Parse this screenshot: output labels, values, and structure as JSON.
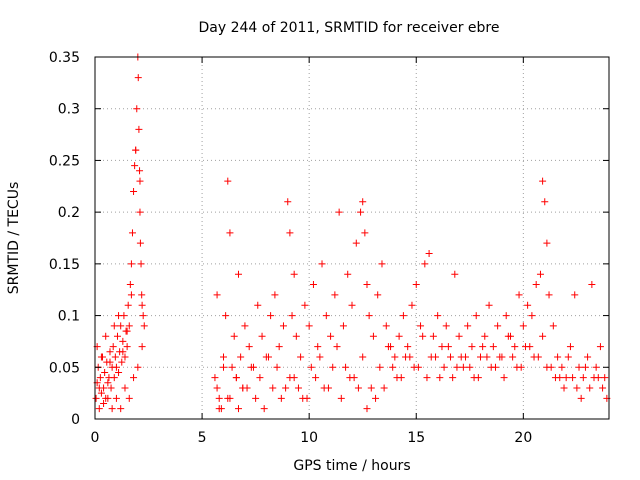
{
  "chart_data": {
    "type": "scatter",
    "title": "Day 244 of 2011, SRMTID for receiver ebre",
    "xlabel": "GPS time / hours",
    "ylabel": "SRMTID / TECUs",
    "xlim": [
      0,
      24
    ],
    "ylim": [
      0,
      0.35
    ],
    "xticks": [
      0,
      5,
      10,
      15,
      20
    ],
    "xtick_labels": [
      "0",
      "5",
      "10",
      "15",
      "20"
    ],
    "yticks": [
      0,
      0.05,
      0.1,
      0.15,
      0.2,
      0.25,
      0.3,
      0.35
    ],
    "ytick_labels": [
      "0",
      "0.05",
      "0.1",
      "0.15",
      "0.2",
      "0.25",
      "0.3",
      "0.35"
    ],
    "grid": true,
    "marker": "+",
    "marker_color": "#ff0000",
    "series": [
      {
        "name": "SRMTID",
        "x": [
          0.05,
          0.1,
          0.15,
          0.2,
          0.25,
          0.3,
          0.35,
          0.4,
          0.45,
          0.5,
          0.55,
          0.6,
          0.65,
          0.7,
          0.75,
          0.8,
          0.85,
          0.9,
          0.95,
          1.0,
          1.05,
          1.1,
          1.15,
          1.2,
          1.25,
          1.3,
          1.35,
          1.4,
          1.45,
          1.5,
          1.55,
          1.6,
          1.65,
          1.7,
          1.75,
          1.8,
          1.85,
          1.9,
          1.95,
          2.0,
          2.02,
          2.05,
          2.08,
          2.1,
          2.12,
          2.15,
          2.18,
          2.2,
          2.25,
          2.3,
          0.2,
          0.4,
          0.6,
          0.8,
          1.0,
          1.2,
          1.4,
          1.6,
          1.8,
          2.0,
          0.1,
          0.3,
          0.5,
          0.7,
          0.9,
          1.1,
          1.3,
          1.5,
          1.7,
          1.9,
          2.1,
          2.2,
          5.6,
          5.7,
          5.8,
          5.9,
          6.0,
          6.1,
          6.2,
          6.3,
          6.4,
          6.5,
          6.6,
          6.7,
          6.8,
          6.9,
          7.0,
          7.2,
          7.4,
          7.6,
          7.8,
          8.0,
          8.2,
          8.4,
          8.6,
          8.8,
          9.0,
          9.1,
          9.2,
          9.3,
          9.4,
          9.6,
          9.8,
          10.0,
          10.2,
          10.4,
          10.6,
          10.8,
          11.0,
          11.2,
          11.4,
          11.6,
          11.8,
          12.0,
          12.2,
          12.4,
          12.5,
          12.6,
          12.7,
          12.8,
          13.0,
          13.2,
          13.4,
          13.6,
          13.8,
          14.0,
          14.2,
          14.4,
          14.6,
          14.8,
          15.0,
          15.2,
          15.4,
          15.6,
          15.8,
          16.0,
          16.2,
          16.4,
          16.6,
          16.8,
          17.0,
          17.2,
          17.4,
          17.6,
          17.8,
          18.0,
          18.2,
          18.4,
          18.6,
          18.8,
          19.0,
          19.2,
          19.4,
          19.6,
          19.8,
          20.0,
          20.2,
          20.4,
          20.6,
          20.8,
          20.9,
          21.0,
          21.1,
          21.2,
          21.4,
          21.6,
          21.8,
          22.0,
          22.2,
          22.4,
          22.6,
          22.8,
          23.0,
          23.2,
          23.4,
          23.6,
          23.8,
          5.7,
          6.0,
          6.3,
          6.6,
          6.9,
          7.3,
          7.7,
          8.1,
          8.5,
          8.9,
          9.3,
          9.7,
          10.1,
          10.5,
          10.9,
          11.3,
          11.7,
          12.1,
          12.5,
          12.9,
          13.3,
          13.7,
          14.1,
          14.5,
          14.9,
          15.3,
          15.7,
          16.1,
          16.5,
          16.9,
          17.3,
          17.7,
          18.1,
          18.5,
          18.9,
          19.3,
          19.7,
          20.1,
          20.5,
          20.9,
          21.3,
          21.7,
          22.1,
          22.5,
          22.9,
          23.3,
          23.7,
          5.8,
          6.2,
          6.7,
          7.1,
          7.5,
          7.9,
          8.3,
          8.7,
          9.1,
          9.5,
          9.9,
          10.3,
          10.7,
          11.1,
          11.5,
          11.9,
          12.3,
          12.7,
          13.1,
          13.5,
          13.9,
          14.3,
          14.7,
          15.1,
          15.5,
          15.9,
          16.3,
          16.7,
          17.1,
          17.5,
          17.9,
          18.3,
          18.7,
          19.1,
          19.5,
          19.9,
          20.3,
          20.7,
          21.1,
          21.5,
          21.9,
          22.3,
          22.7,
          23.1,
          23.5,
          23.9
        ],
        "y": [
          0.02,
          0.035,
          0.05,
          0.03,
          0.04,
          0.025,
          0.06,
          0.03,
          0.045,
          0.02,
          0.055,
          0.035,
          0.04,
          0.065,
          0.03,
          0.05,
          0.07,
          0.04,
          0.06,
          0.05,
          0.08,
          0.045,
          0.065,
          0.09,
          0.055,
          0.075,
          0.1,
          0.06,
          0.085,
          0.07,
          0.11,
          0.09,
          0.13,
          0.15,
          0.18,
          0.22,
          0.245,
          0.26,
          0.3,
          0.35,
          0.33,
          0.28,
          0.24,
          0.2,
          0.17,
          0.15,
          0.12,
          0.11,
          0.1,
          0.09,
          0.01,
          0.015,
          0.02,
          0.01,
          0.02,
          0.01,
          0.03,
          0.02,
          0.04,
          0.05,
          0.07,
          0.06,
          0.08,
          0.055,
          0.09,
          0.1,
          0.065,
          0.085,
          0.12,
          0.26,
          0.23,
          0.07,
          0.04,
          0.12,
          0.02,
          0.01,
          0.06,
          0.1,
          0.23,
          0.18,
          0.05,
          0.08,
          0.04,
          0.14,
          0.06,
          0.03,
          0.09,
          0.07,
          0.05,
          0.11,
          0.08,
          0.06,
          0.1,
          0.12,
          0.07,
          0.09,
          0.21,
          0.18,
          0.1,
          0.14,
          0.08,
          0.06,
          0.11,
          0.09,
          0.13,
          0.07,
          0.15,
          0.1,
          0.08,
          0.12,
          0.2,
          0.09,
          0.14,
          0.11,
          0.17,
          0.2,
          0.21,
          0.18,
          0.13,
          0.1,
          0.08,
          0.12,
          0.15,
          0.09,
          0.07,
          0.06,
          0.08,
          0.1,
          0.07,
          0.11,
          0.13,
          0.09,
          0.15,
          0.16,
          0.08,
          0.1,
          0.07,
          0.09,
          0.06,
          0.14,
          0.08,
          0.05,
          0.09,
          0.07,
          0.1,
          0.06,
          0.08,
          0.11,
          0.07,
          0.09,
          0.06,
          0.1,
          0.08,
          0.07,
          0.12,
          0.09,
          0.11,
          0.1,
          0.13,
          0.14,
          0.23,
          0.21,
          0.17,
          0.12,
          0.09,
          0.06,
          0.05,
          0.04,
          0.07,
          0.12,
          0.05,
          0.04,
          0.06,
          0.13,
          0.05,
          0.07,
          0.04,
          0.03,
          0.05,
          0.02,
          0.04,
          0.03,
          0.05,
          0.04,
          0.06,
          0.05,
          0.03,
          0.04,
          0.02,
          0.05,
          0.06,
          0.03,
          0.07,
          0.05,
          0.04,
          0.06,
          0.03,
          0.05,
          0.07,
          0.04,
          0.06,
          0.05,
          0.08,
          0.06,
          0.04,
          0.07,
          0.05,
          0.06,
          0.04,
          0.07,
          0.05,
          0.06,
          0.08,
          0.05,
          0.07,
          0.06,
          0.08,
          0.05,
          0.04,
          0.06,
          0.03,
          0.05,
          0.04,
          0.03,
          0.01,
          0.02,
          0.01,
          0.03,
          0.02,
          0.01,
          0.03,
          0.02,
          0.04,
          0.03,
          0.02,
          0.04,
          0.03,
          0.05,
          0.02,
          0.04,
          0.03,
          0.01,
          0.02,
          0.03,
          0.05,
          0.04,
          0.06,
          0.05,
          0.04,
          0.06,
          0.05,
          0.04,
          0.06,
          0.05,
          0.04,
          0.06,
          0.05,
          0.04,
          0.06,
          0.05,
          0.07,
          0.06,
          0.05,
          0.04,
          0.03,
          0.04,
          0.02,
          0.03,
          0.04,
          0.02
        ]
      }
    ]
  }
}
